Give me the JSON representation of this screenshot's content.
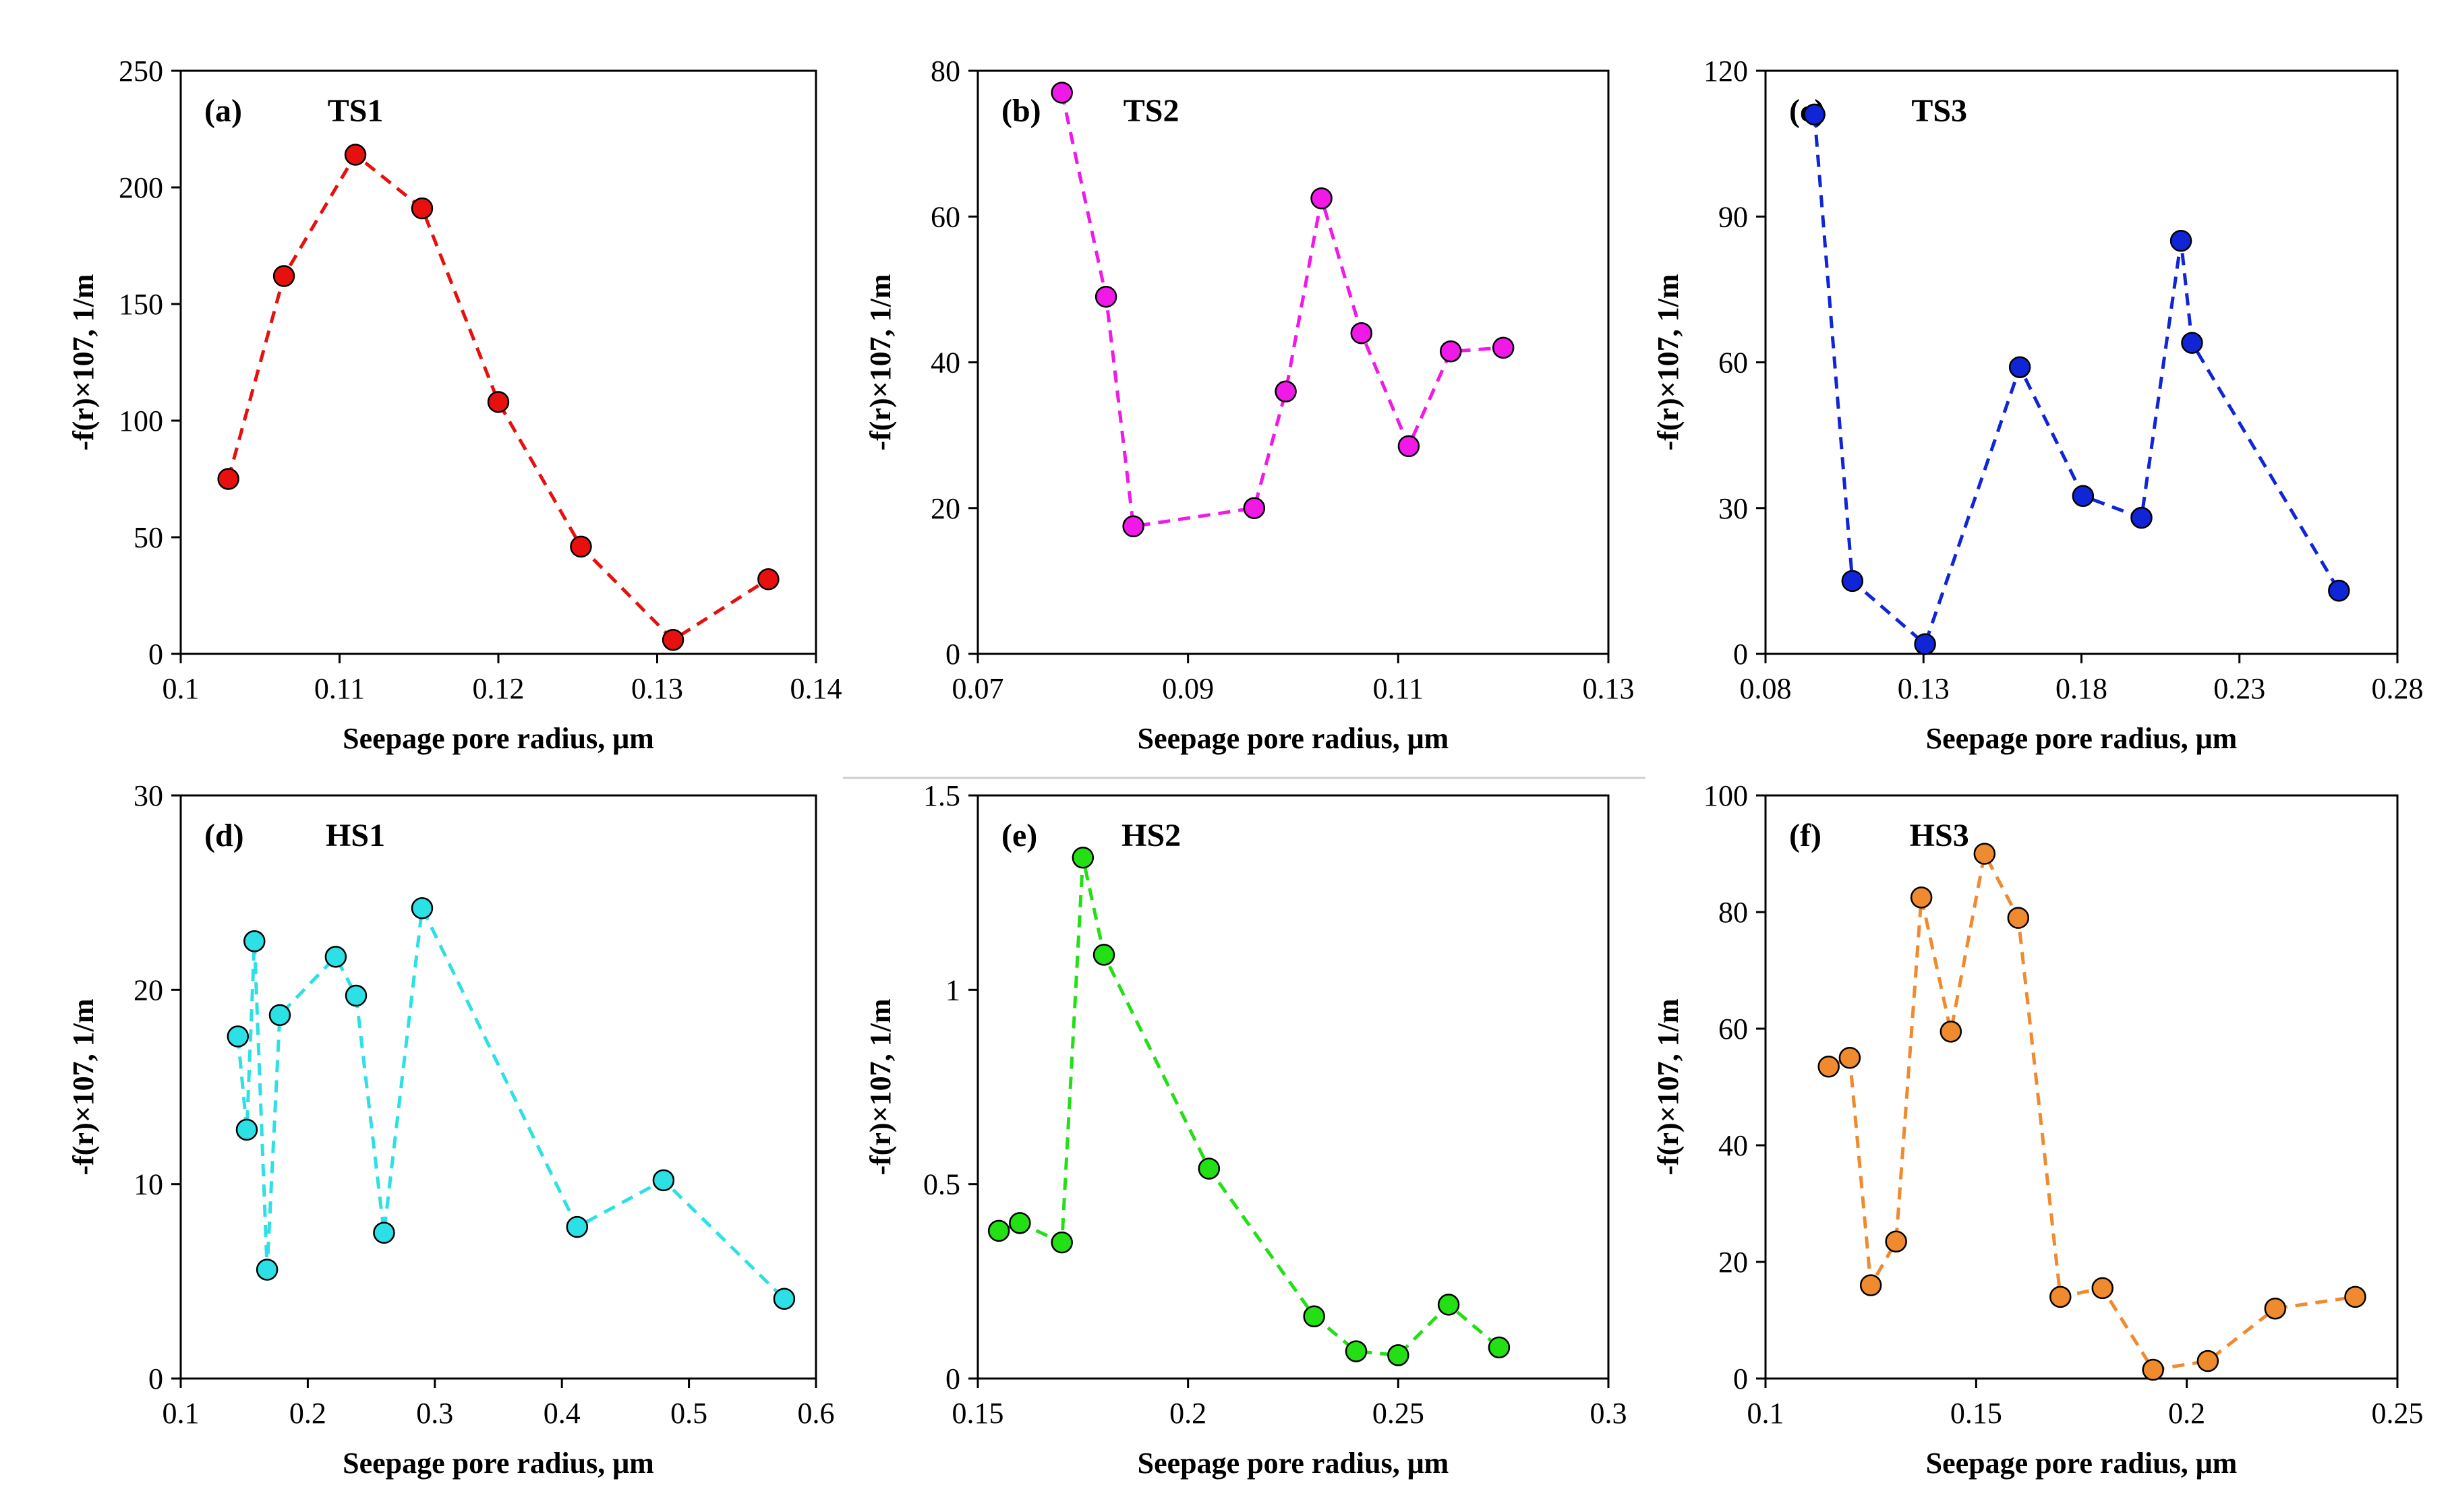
{
  "chart_data": [
    {
      "type": "line",
      "panel": "(a)",
      "title": "TS1",
      "xlabel": "Seepage pore radius, μm",
      "ylabel": "-f(r)×107, 1/m",
      "xlim": [
        0.1,
        0.14
      ],
      "ylim": [
        0,
        250
      ],
      "xticks": [
        0.1,
        0.11,
        0.12,
        0.13,
        0.14
      ],
      "xtick_labels": [
        "0.1",
        "0.11",
        "0.12",
        "0.13",
        "0.14"
      ],
      "yticks": [
        0,
        50,
        100,
        150,
        200,
        250
      ],
      "ytick_labels": [
        "0",
        "50",
        "100",
        "150",
        "200",
        "250"
      ],
      "color": "#e6110f",
      "series": [
        {
          "name": "TS1",
          "x": [
            0.103,
            0.1065,
            0.111,
            0.1152,
            0.12,
            0.1252,
            0.131,
            0.137
          ],
          "y": [
            75,
            162,
            214,
            191,
            108,
            46,
            6,
            32
          ]
        }
      ]
    },
    {
      "type": "line",
      "panel": "(b)",
      "title": "TS2",
      "xlabel": "Seepage pore radius, μm",
      "ylabel": "-f(r)×107, 1/m",
      "xlim": [
        0.07,
        0.13
      ],
      "ylim": [
        0,
        80
      ],
      "xticks": [
        0.07,
        0.09,
        0.11,
        0.13
      ],
      "xtick_labels": [
        "0.07",
        "0.09",
        "0.11",
        "0.13"
      ],
      "yticks": [
        0,
        20,
        40,
        60,
        80
      ],
      "ytick_labels": [
        "0",
        "20",
        "40",
        "60",
        "80"
      ],
      "color": "#f019e8",
      "series": [
        {
          "name": "TS2",
          "x": [
            0.078,
            0.0822,
            0.0848,
            0.0963,
            0.0993,
            0.1027,
            0.1065,
            0.111,
            0.115,
            0.12
          ],
          "y": [
            77,
            49,
            17.5,
            20,
            36,
            62.5,
            44,
            28.5,
            41.5,
            42
          ]
        }
      ]
    },
    {
      "type": "line",
      "panel": "(c)",
      "title": "TS3",
      "xlabel": "Seepage pore radius, μm",
      "ylabel": "-f(r)×107, 1/m",
      "xlim": [
        0.08,
        0.28
      ],
      "ylim": [
        0,
        120
      ],
      "xticks": [
        0.08,
        0.13,
        0.18,
        0.23,
        0.28
      ],
      "xtick_labels": [
        "0.08",
        "0.13",
        "0.18",
        "0.23",
        "0.28"
      ],
      "yticks": [
        0,
        30,
        60,
        90,
        120
      ],
      "ytick_labels": [
        "0",
        "30",
        "60",
        "90",
        "120"
      ],
      "color": "#1026d6",
      "series": [
        {
          "name": "TS3",
          "x": [
            0.0955,
            0.1075,
            0.1305,
            0.1605,
            0.1805,
            0.199,
            0.2115,
            0.215,
            0.2615
          ],
          "y": [
            111,
            15,
            2,
            59,
            32.5,
            28,
            85,
            64,
            13
          ]
        }
      ]
    },
    {
      "type": "line",
      "panel": "(d)",
      "title": "HS1",
      "xlabel": "Seepage pore radius, μm",
      "ylabel": "-f(r)×107, 1/m",
      "xlim": [
        0.1,
        0.6
      ],
      "ylim": [
        0,
        30
      ],
      "xticks": [
        0.1,
        0.2,
        0.3,
        0.4,
        0.5,
        0.6
      ],
      "xtick_labels": [
        "0.1",
        "0.2",
        "0.3",
        "0.4",
        "0.5",
        "0.6"
      ],
      "yticks": [
        0,
        10,
        20,
        30
      ],
      "ytick_labels": [
        "0",
        "10",
        "20",
        "30"
      ],
      "color": "#2ce1e6",
      "series": [
        {
          "name": "HS1",
          "x": [
            0.145,
            0.152,
            0.158,
            0.168,
            0.178,
            0.222,
            0.238,
            0.26,
            0.29,
            0.412,
            0.48,
            0.575
          ],
          "y": [
            17.6,
            12.8,
            22.5,
            5.6,
            18.7,
            21.7,
            19.7,
            7.5,
            24.2,
            7.8,
            10.2,
            4.1
          ]
        }
      ]
    },
    {
      "type": "line",
      "panel": "(e)",
      "title": "HS2",
      "xlabel": "Seepage pore radius, μm",
      "ylabel": "-f(r)×107, 1/m",
      "xlim": [
        0.15,
        0.3
      ],
      "ylim": [
        0,
        1.5
      ],
      "xticks": [
        0.15,
        0.2,
        0.25,
        0.3
      ],
      "xtick_labels": [
        "0.15",
        "0.2",
        "0.25",
        "0.3"
      ],
      "yticks": [
        0,
        0.5,
        1,
        1.5
      ],
      "ytick_labels": [
        "0",
        "0.5",
        "1",
        "1.5"
      ],
      "color": "#22e014",
      "series": [
        {
          "name": "HS2",
          "x": [
            0.155,
            0.16,
            0.17,
            0.175,
            0.18,
            0.205,
            0.23,
            0.24,
            0.25,
            0.262,
            0.274
          ],
          "y": [
            0.38,
            0.4,
            0.35,
            1.34,
            1.09,
            0.54,
            0.16,
            0.07,
            0.06,
            0.19,
            0.08
          ]
        }
      ]
    },
    {
      "type": "line",
      "panel": "(f)",
      "title": "HS3",
      "xlabel": "Seepage pore radius, μm",
      "ylabel": "-f(r)×107, 1/m",
      "xlim": [
        0.1,
        0.25
      ],
      "ylim": [
        0,
        100
      ],
      "xticks": [
        0.1,
        0.15,
        0.2,
        0.25
      ],
      "xtick_labels": [
        "0.1",
        "0.15",
        "0.2",
        "0.25"
      ],
      "yticks": [
        0,
        20,
        40,
        60,
        80,
        100
      ],
      "ytick_labels": [
        "0",
        "20",
        "40",
        "60",
        "80",
        "100"
      ],
      "color": "#f08a2e",
      "series": [
        {
          "name": "HS3",
          "x": [
            0.115,
            0.12,
            0.125,
            0.131,
            0.137,
            0.144,
            0.152,
            0.16,
            0.17,
            0.18,
            0.192,
            0.205,
            0.221,
            0.24
          ],
          "y": [
            53.5,
            55,
            16,
            23.5,
            82.5,
            59.5,
            90,
            79,
            14,
            15.5,
            1.5,
            3,
            12,
            14
          ]
        }
      ]
    }
  ]
}
